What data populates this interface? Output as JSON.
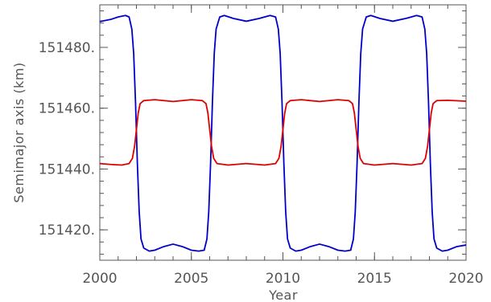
{
  "chart_data": {
    "type": "line",
    "title": "",
    "xlabel": "Year",
    "ylabel": "Semimajor axis (km)",
    "xlim": [
      2000,
      2020
    ],
    "ylim": [
      151410,
      151494
    ],
    "x_ticks": [
      2000,
      2005,
      2010,
      2015,
      2020
    ],
    "x_tick_labels": [
      "2000",
      "2005",
      "2010",
      "2015",
      "2020"
    ],
    "y_ticks": [
      151420,
      151440,
      151460,
      151480
    ],
    "y_tick_labels": [
      "151420.",
      "151440.",
      "151460.",
      "151480."
    ],
    "x_minor_step": 1,
    "y_minor_step": 4,
    "grid": false,
    "series": [
      {
        "color": "#0000cc",
        "points": [
          [
            2000,
            151488.5
          ],
          [
            2000.6,
            151489.2
          ],
          [
            2001.0,
            151490.0
          ],
          [
            2001.4,
            151490.5
          ],
          [
            2001.6,
            151490.0
          ],
          [
            2001.75,
            151486.0
          ],
          [
            2001.85,
            151478.0
          ],
          [
            2001.95,
            151462.0
          ],
          [
            2002.05,
            151442.0
          ],
          [
            2002.15,
            151426.0
          ],
          [
            2002.25,
            151417.0
          ],
          [
            2002.4,
            151414.0
          ],
          [
            2002.7,
            151413.0
          ],
          [
            2003.0,
            151413.3
          ],
          [
            2003.5,
            151414.5
          ],
          [
            2004.0,
            151415.3
          ],
          [
            2004.5,
            151414.5
          ],
          [
            2005.0,
            151413.3
          ],
          [
            2005.4,
            151413.0
          ],
          [
            2005.7,
            151413.3
          ],
          [
            2005.85,
            151417.0
          ],
          [
            2005.95,
            151426.0
          ],
          [
            2006.05,
            151442.0
          ],
          [
            2006.15,
            151462.0
          ],
          [
            2006.25,
            151478.0
          ],
          [
            2006.35,
            151486.0
          ],
          [
            2006.55,
            151490.0
          ],
          [
            2006.8,
            151490.5
          ],
          [
            2007.3,
            151489.5
          ],
          [
            2008.0,
            151488.6
          ],
          [
            2008.7,
            151489.5
          ],
          [
            2009.3,
            151490.5
          ],
          [
            2009.6,
            151490.0
          ],
          [
            2009.75,
            151486.0
          ],
          [
            2009.85,
            151478.0
          ],
          [
            2009.95,
            151462.0
          ],
          [
            2010.05,
            151442.0
          ],
          [
            2010.15,
            151426.0
          ],
          [
            2010.25,
            151417.0
          ],
          [
            2010.4,
            151414.0
          ],
          [
            2010.7,
            151413.0
          ],
          [
            2011.0,
            151413.3
          ],
          [
            2011.5,
            151414.5
          ],
          [
            2012.0,
            151415.3
          ],
          [
            2012.5,
            151414.5
          ],
          [
            2013.0,
            151413.3
          ],
          [
            2013.4,
            151413.0
          ],
          [
            2013.7,
            151413.3
          ],
          [
            2013.85,
            151417.0
          ],
          [
            2013.95,
            151426.0
          ],
          [
            2014.05,
            151442.0
          ],
          [
            2014.15,
            151462.0
          ],
          [
            2014.25,
            151478.0
          ],
          [
            2014.35,
            151486.0
          ],
          [
            2014.55,
            151490.0
          ],
          [
            2014.8,
            151490.5
          ],
          [
            2015.3,
            151489.5
          ],
          [
            2016.0,
            151488.6
          ],
          [
            2016.7,
            151489.5
          ],
          [
            2017.3,
            151490.5
          ],
          [
            2017.6,
            151490.0
          ],
          [
            2017.75,
            151486.0
          ],
          [
            2017.85,
            151478.0
          ],
          [
            2017.95,
            151462.0
          ],
          [
            2018.05,
            151442.0
          ],
          [
            2018.15,
            151426.0
          ],
          [
            2018.25,
            151417.0
          ],
          [
            2018.4,
            151414.0
          ],
          [
            2018.7,
            151413.0
          ],
          [
            2019.0,
            151413.3
          ],
          [
            2019.5,
            151414.5
          ],
          [
            2020.0,
            151415.0
          ]
        ]
      },
      {
        "color": "#dd0000",
        "points": [
          [
            2000,
            151441.8
          ],
          [
            2000.6,
            151441.5
          ],
          [
            2001.2,
            151441.3
          ],
          [
            2001.6,
            151441.8
          ],
          [
            2001.78,
            151443.5
          ],
          [
            2001.9,
            151447.5
          ],
          [
            2002.0,
            151453.0
          ],
          [
            2002.1,
            151458.5
          ],
          [
            2002.2,
            151461.5
          ],
          [
            2002.4,
            151462.5
          ],
          [
            2003.0,
            151462.8
          ],
          [
            2004.0,
            151462.2
          ],
          [
            2005.0,
            151462.8
          ],
          [
            2005.6,
            151462.5
          ],
          [
            2005.8,
            151461.5
          ],
          [
            2005.9,
            151458.5
          ],
          [
            2006.0,
            151453.0
          ],
          [
            2006.1,
            151447.5
          ],
          [
            2006.22,
            151443.5
          ],
          [
            2006.4,
            151441.8
          ],
          [
            2007.0,
            151441.3
          ],
          [
            2008.0,
            151441.8
          ],
          [
            2009.0,
            151441.3
          ],
          [
            2009.6,
            151441.8
          ],
          [
            2009.78,
            151443.5
          ],
          [
            2009.9,
            151447.5
          ],
          [
            2010.0,
            151453.0
          ],
          [
            2010.1,
            151458.5
          ],
          [
            2010.2,
            151461.5
          ],
          [
            2010.4,
            151462.5
          ],
          [
            2011.0,
            151462.8
          ],
          [
            2012.0,
            151462.2
          ],
          [
            2013.0,
            151462.8
          ],
          [
            2013.6,
            151462.5
          ],
          [
            2013.8,
            151461.5
          ],
          [
            2013.9,
            151458.5
          ],
          [
            2014.0,
            151453.0
          ],
          [
            2014.1,
            151447.5
          ],
          [
            2014.22,
            151443.5
          ],
          [
            2014.4,
            151441.8
          ],
          [
            2015.0,
            151441.3
          ],
          [
            2016.0,
            151441.8
          ],
          [
            2017.0,
            151441.3
          ],
          [
            2017.6,
            151441.8
          ],
          [
            2017.78,
            151443.5
          ],
          [
            2017.9,
            151447.5
          ],
          [
            2018.0,
            151453.0
          ],
          [
            2018.1,
            151458.5
          ],
          [
            2018.2,
            151461.5
          ],
          [
            2018.4,
            151462.5
          ],
          [
            2019.0,
            151462.6
          ],
          [
            2020.0,
            151462.3
          ]
        ]
      }
    ]
  }
}
